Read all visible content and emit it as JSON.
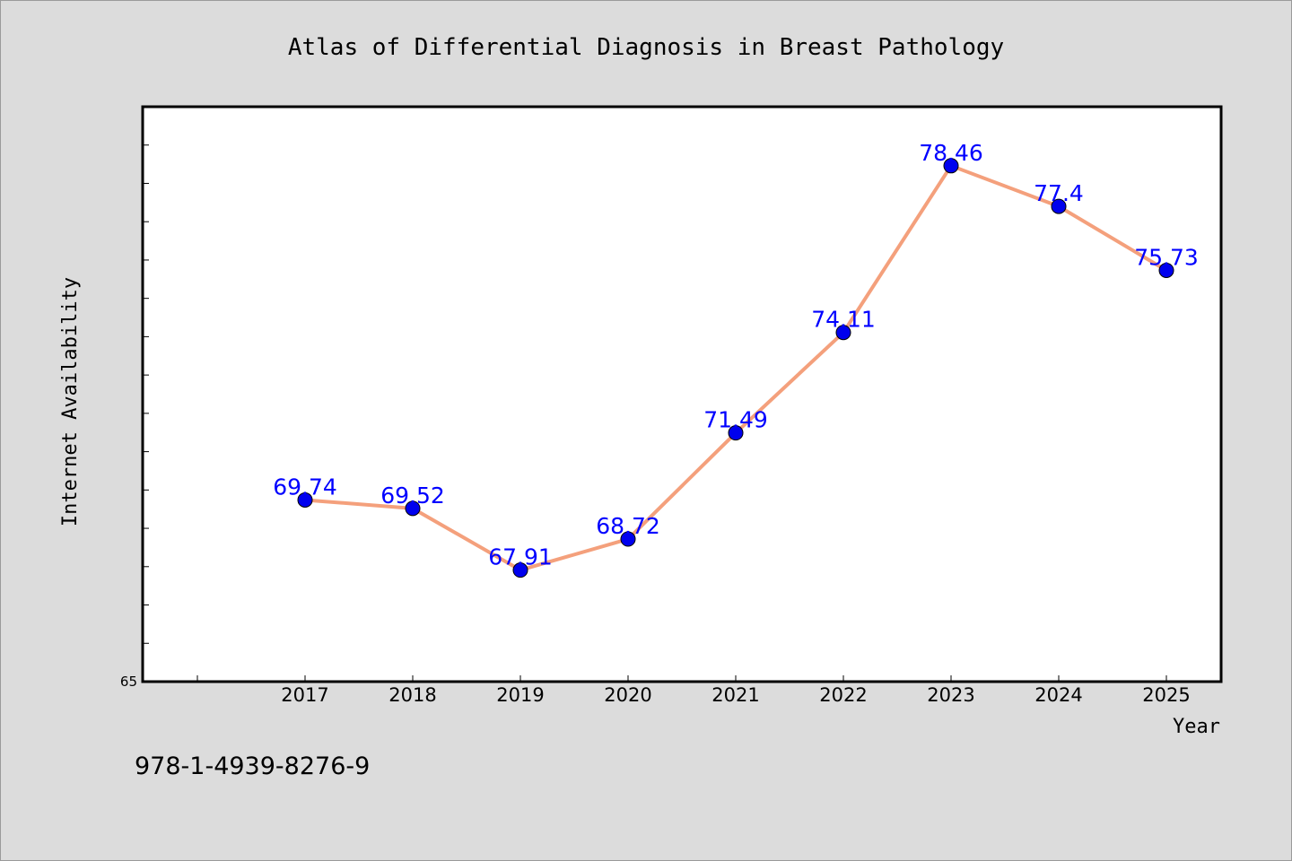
{
  "colors": {
    "background": "#dcdcdc",
    "plot_background": "#ffffff",
    "line": "#f4a07c",
    "marker": "#0000ee",
    "data_label": "#0000ff"
  },
  "footer_text": "978-1-4939-8276-9",
  "chart_data": {
    "type": "line",
    "title": "Atlas of Differential Diagnosis in Breast Pathology",
    "xlabel": "Year",
    "ylabel": "Internet Availability",
    "categories": [
      "2017",
      "2018",
      "2019",
      "2020",
      "2021",
      "2022",
      "2023",
      "2024",
      "2025"
    ],
    "series": [
      {
        "values": [
          69.74,
          69.52,
          67.91,
          68.72,
          71.49,
          74.11,
          78.46,
          77.4,
          75.73
        ],
        "labels": [
          "69.74",
          "69.52",
          "67.91",
          "68.72",
          "71.49",
          "74.11",
          "78.46",
          "77.4",
          "75.73"
        ]
      }
    ],
    "ylim": [
      65,
      80
    ],
    "y_tick_labels": [
      "65"
    ],
    "grid": false,
    "legend": "none",
    "markers": "circle"
  }
}
